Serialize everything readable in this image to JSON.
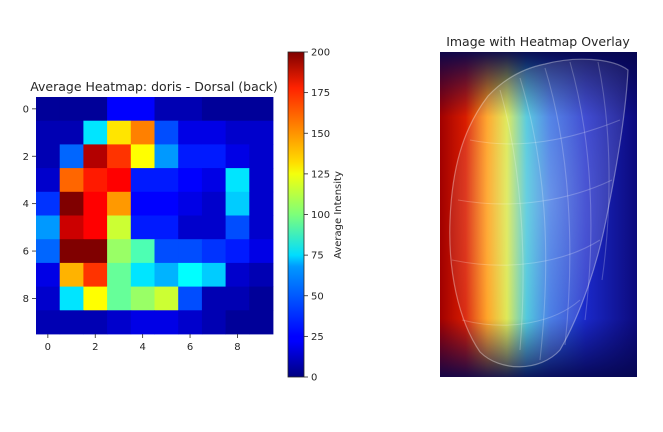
{
  "chart_data": [
    {
      "type": "heatmap",
      "title": "Average Heatmap: doris - Dorsal (back)",
      "xticks": [
        "0",
        "2",
        "4",
        "6",
        "8"
      ],
      "yticks": [
        "0",
        "2",
        "4",
        "6",
        "8"
      ],
      "values": [
        [
          5,
          5,
          5,
          25,
          25,
          10,
          10,
          5,
          5,
          5
        ],
        [
          10,
          10,
          70,
          130,
          150,
          40,
          20,
          20,
          15,
          15
        ],
        [
          10,
          45,
          190,
          165,
          125,
          55,
          30,
          30,
          20,
          15
        ],
        [
          15,
          155,
          170,
          175,
          30,
          30,
          25,
          20,
          70,
          15
        ],
        [
          35,
          200,
          175,
          145,
          25,
          25,
          20,
          15,
          65,
          15
        ],
        [
          55,
          185,
          175,
          115,
          30,
          30,
          15,
          15,
          40,
          15
        ],
        [
          45,
          200,
          200,
          105,
          90,
          40,
          40,
          35,
          30,
          20
        ],
        [
          20,
          140,
          165,
          95,
          70,
          60,
          75,
          65,
          15,
          10
        ],
        [
          15,
          70,
          125,
          95,
          105,
          115,
          40,
          10,
          10,
          5
        ],
        [
          10,
          10,
          10,
          15,
          20,
          20,
          15,
          10,
          5,
          5
        ]
      ],
      "colorbar": {
        "label": "Average Intensity",
        "range": [
          0,
          200
        ],
        "ticks": [
          "0",
          "25",
          "50",
          "75",
          "100",
          "125",
          "150",
          "175",
          "200"
        ],
        "colormap": "jet"
      }
    },
    {
      "type": "image",
      "title": "Image with Heatmap Overlay",
      "subject": "cone-shell",
      "colormap": "jet"
    }
  ]
}
